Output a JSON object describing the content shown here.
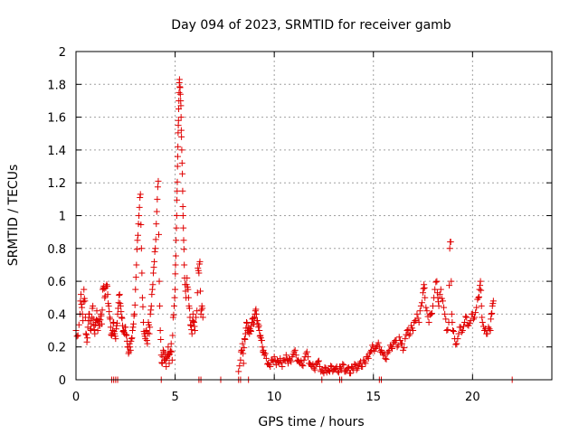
{
  "chart_data": {
    "type": "scatter",
    "title": "Day 094 of 2023, SRMTID for receiver gamb",
    "xlabel": "GPS time / hours",
    "ylabel": "SRMTID / TECUs",
    "xlim": [
      0,
      24
    ],
    "ylim": [
      0,
      2
    ],
    "xticks": [
      0,
      5,
      10,
      15,
      20
    ],
    "xtick_labels": [
      "0",
      "5",
      "10",
      "15",
      "20"
    ],
    "yticks": [
      0,
      0.2,
      0.4,
      0.6,
      0.8,
      1,
      1.2,
      1.4,
      1.6,
      1.8,
      2
    ],
    "ytick_labels": [
      "0",
      "0.2",
      "0.4",
      "0.6",
      "0.8",
      "1",
      "1.2",
      "1.4",
      "1.6",
      "1.8",
      "2"
    ],
    "grid": true,
    "marker": "+",
    "marker_color": "#e00000",
    "series": [
      {
        "name": "SRMTID",
        "points": [
          [
            0.0,
            0.3
          ],
          [
            0.1,
            0.27
          ],
          [
            0.2,
            0.4
          ],
          [
            0.25,
            0.52
          ],
          [
            0.3,
            0.44
          ],
          [
            0.35,
            0.36
          ],
          [
            0.4,
            0.55
          ],
          [
            0.45,
            0.48
          ],
          [
            0.5,
            0.28
          ],
          [
            0.55,
            0.23
          ],
          [
            0.6,
            0.32
          ],
          [
            0.65,
            0.4
          ],
          [
            0.7,
            0.36
          ],
          [
            0.75,
            0.3
          ],
          [
            0.8,
            0.38
          ],
          [
            0.85,
            0.45
          ],
          [
            0.9,
            0.33
          ],
          [
            0.95,
            0.28
          ],
          [
            1.0,
            0.35
          ],
          [
            1.05,
            0.42
          ],
          [
            1.1,
            0.3
          ],
          [
            1.15,
            0.37
          ],
          [
            1.2,
            0.33
          ],
          [
            1.25,
            0.4
          ],
          [
            1.3,
            0.34
          ],
          [
            1.35,
            0.55
          ],
          [
            1.4,
            0.57
          ],
          [
            1.45,
            0.5
          ],
          [
            1.5,
            0.56
          ],
          [
            1.55,
            0.58
          ],
          [
            1.6,
            0.52
          ],
          [
            1.65,
            0.45
          ],
          [
            1.7,
            0.38
          ],
          [
            1.75,
            0.32
          ],
          [
            1.8,
            0.27
          ],
          [
            1.85,
            0.3
          ],
          [
            1.9,
            0.35
          ],
          [
            1.95,
            0.28
          ],
          [
            2.0,
            0.25
          ],
          [
            2.05,
            0.33
          ],
          [
            2.1,
            0.4
          ],
          [
            2.15,
            0.47
          ],
          [
            2.2,
            0.52
          ],
          [
            2.25,
            0.45
          ],
          [
            2.3,
            0.38
          ],
          [
            2.35,
            0.33
          ],
          [
            2.4,
            0.3
          ],
          [
            2.45,
            0.28
          ],
          [
            2.5,
            0.32
          ],
          [
            2.55,
            0.27
          ],
          [
            2.6,
            0.2
          ],
          [
            2.65,
            0.16
          ],
          [
            2.7,
            0.22
          ],
          [
            2.75,
            0.18
          ],
          [
            2.8,
            0.25
          ],
          [
            2.85,
            0.3
          ],
          [
            2.9,
            0.34
          ],
          [
            2.95,
            0.4
          ],
          [
            3.0,
            0.55
          ],
          [
            3.05,
            0.7
          ],
          [
            3.1,
            0.85
          ],
          [
            3.15,
            0.95
          ],
          [
            3.2,
            1.05
          ],
          [
            3.25,
            1.13
          ],
          [
            3.3,
            0.8
          ],
          [
            3.35,
            0.5
          ],
          [
            3.4,
            0.35
          ],
          [
            3.45,
            0.28
          ],
          [
            3.5,
            0.25
          ],
          [
            3.55,
            0.3
          ],
          [
            3.6,
            0.22
          ],
          [
            3.65,
            0.35
          ],
          [
            3.7,
            0.28
          ],
          [
            3.75,
            0.4
          ],
          [
            3.8,
            0.45
          ],
          [
            3.85,
            0.55
          ],
          [
            3.9,
            0.65
          ],
          [
            3.95,
            0.72
          ],
          [
            4.0,
            0.8
          ],
          [
            4.05,
            0.95
          ],
          [
            4.1,
            1.1
          ],
          [
            4.15,
            1.21
          ],
          [
            4.2,
            0.6
          ],
          [
            4.25,
            0.3
          ],
          [
            4.3,
            0.15
          ],
          [
            4.35,
            0.1
          ],
          [
            4.4,
            0.18
          ],
          [
            4.45,
            0.12
          ],
          [
            4.5,
            0.16
          ],
          [
            4.55,
            0.08
          ],
          [
            4.6,
            0.14
          ],
          [
            4.65,
            0.2
          ],
          [
            4.7,
            0.1
          ],
          [
            4.75,
            0.17
          ],
          [
            4.8,
            0.22
          ],
          [
            4.85,
            0.12
          ],
          [
            4.9,
            0.38
          ],
          [
            4.95,
            0.45
          ],
          [
            5.0,
            0.55
          ],
          [
            5.02,
            0.7
          ],
          [
            5.05,
            0.85
          ],
          [
            5.08,
            1.0
          ],
          [
            5.1,
            1.15
          ],
          [
            5.12,
            1.3
          ],
          [
            5.14,
            1.42
          ],
          [
            5.16,
            1.55
          ],
          [
            5.18,
            1.65
          ],
          [
            5.2,
            1.75
          ],
          [
            5.22,
            1.83
          ],
          [
            5.25,
            1.78
          ],
          [
            5.28,
            1.7
          ],
          [
            5.3,
            1.6
          ],
          [
            5.32,
            1.48
          ],
          [
            5.35,
            1.32
          ],
          [
            5.38,
            1.15
          ],
          [
            5.4,
            1.0
          ],
          [
            5.43,
            0.85
          ],
          [
            5.46,
            0.7
          ],
          [
            5.5,
            0.58
          ],
          [
            5.55,
            0.5
          ],
          [
            5.6,
            0.62
          ],
          [
            5.65,
            0.55
          ],
          [
            5.7,
            0.45
          ],
          [
            5.75,
            0.38
          ],
          [
            5.8,
            0.33
          ],
          [
            5.85,
            0.28
          ],
          [
            5.9,
            0.4
          ],
          [
            5.95,
            0.35
          ],
          [
            6.0,
            0.3
          ],
          [
            6.1,
            0.42
          ],
          [
            6.15,
            0.68
          ],
          [
            6.2,
            0.65
          ],
          [
            6.25,
            0.72
          ],
          [
            6.3,
            0.4
          ],
          [
            6.35,
            0.45
          ],
          [
            6.4,
            0.38
          ],
          [
            8.2,
            0.05
          ],
          [
            8.3,
            0.12
          ],
          [
            8.35,
            0.18
          ],
          [
            8.4,
            0.22
          ],
          [
            8.45,
            0.1
          ],
          [
            8.5,
            0.25
          ],
          [
            8.55,
            0.28
          ],
          [
            8.6,
            0.35
          ],
          [
            8.65,
            0.3
          ],
          [
            8.7,
            0.32
          ],
          [
            8.75,
            0.28
          ],
          [
            8.8,
            0.3
          ],
          [
            8.85,
            0.33
          ],
          [
            8.9,
            0.37
          ],
          [
            8.95,
            0.34
          ],
          [
            9.0,
            0.38
          ],
          [
            9.05,
            0.42
          ],
          [
            9.1,
            0.4
          ],
          [
            9.15,
            0.36
          ],
          [
            9.2,
            0.32
          ],
          [
            9.25,
            0.3
          ],
          [
            9.3,
            0.27
          ],
          [
            9.35,
            0.24
          ],
          [
            9.4,
            0.2
          ],
          [
            9.45,
            0.18
          ],
          [
            9.5,
            0.15
          ],
          [
            9.6,
            0.13
          ],
          [
            9.7,
            0.1
          ],
          [
            9.8,
            0.08
          ],
          [
            9.9,
            0.12
          ],
          [
            10.0,
            0.14
          ],
          [
            10.1,
            0.09
          ],
          [
            10.2,
            0.11
          ],
          [
            10.3,
            0.13
          ],
          [
            10.4,
            0.08
          ],
          [
            10.5,
            0.12
          ],
          [
            10.6,
            0.15
          ],
          [
            10.7,
            0.1
          ],
          [
            10.8,
            0.12
          ],
          [
            10.9,
            0.14
          ],
          [
            11.0,
            0.17
          ],
          [
            11.1,
            0.15
          ],
          [
            11.2,
            0.12
          ],
          [
            11.3,
            0.1
          ],
          [
            11.4,
            0.09
          ],
          [
            11.5,
            0.12
          ],
          [
            11.6,
            0.16
          ],
          [
            11.7,
            0.14
          ],
          [
            11.8,
            0.1
          ],
          [
            11.9,
            0.08
          ],
          [
            12.0,
            0.07
          ],
          [
            12.1,
            0.09
          ],
          [
            12.2,
            0.11
          ],
          [
            12.3,
            0.08
          ],
          [
            12.4,
            0.06
          ],
          [
            12.5,
            0.04
          ],
          [
            12.6,
            0.07
          ],
          [
            12.7,
            0.06
          ],
          [
            12.8,
            0.05
          ],
          [
            12.9,
            0.08
          ],
          [
            13.0,
            0.06
          ],
          [
            13.1,
            0.07
          ],
          [
            13.2,
            0.05
          ],
          [
            13.3,
            0.08
          ],
          [
            13.4,
            0.06
          ],
          [
            13.5,
            0.09
          ],
          [
            13.6,
            0.05
          ],
          [
            13.7,
            0.07
          ],
          [
            13.8,
            0.04
          ],
          [
            13.9,
            0.08
          ],
          [
            14.0,
            0.06
          ],
          [
            14.1,
            0.09
          ],
          [
            14.2,
            0.07
          ],
          [
            14.3,
            0.1
          ],
          [
            14.4,
            0.08
          ],
          [
            14.5,
            0.12
          ],
          [
            14.6,
            0.1
          ],
          [
            14.7,
            0.14
          ],
          [
            14.8,
            0.16
          ],
          [
            14.9,
            0.18
          ],
          [
            15.0,
            0.2
          ],
          [
            15.1,
            0.19
          ],
          [
            15.2,
            0.21
          ],
          [
            15.3,
            0.2
          ],
          [
            15.4,
            0.18
          ],
          [
            15.5,
            0.15
          ],
          [
            15.6,
            0.13
          ],
          [
            15.7,
            0.16
          ],
          [
            15.8,
            0.18
          ],
          [
            15.9,
            0.2
          ],
          [
            16.0,
            0.22
          ],
          [
            16.1,
            0.24
          ],
          [
            16.2,
            0.2
          ],
          [
            16.3,
            0.26
          ],
          [
            16.4,
            0.22
          ],
          [
            16.5,
            0.18
          ],
          [
            16.6,
            0.25
          ],
          [
            16.7,
            0.3
          ],
          [
            16.8,
            0.27
          ],
          [
            16.9,
            0.33
          ],
          [
            17.0,
            0.3
          ],
          [
            17.1,
            0.36
          ],
          [
            17.2,
            0.4
          ],
          [
            17.3,
            0.35
          ],
          [
            17.4,
            0.45
          ],
          [
            17.5,
            0.53
          ],
          [
            17.55,
            0.58
          ],
          [
            17.6,
            0.5
          ],
          [
            17.7,
            0.42
          ],
          [
            17.8,
            0.35
          ],
          [
            17.9,
            0.4
          ],
          [
            18.0,
            0.45
          ],
          [
            18.1,
            0.55
          ],
          [
            18.2,
            0.6
          ],
          [
            18.25,
            0.5
          ],
          [
            18.3,
            0.45
          ],
          [
            18.4,
            0.55
          ],
          [
            18.5,
            0.48
          ],
          [
            18.6,
            0.4
          ],
          [
            18.7,
            0.3
          ],
          [
            18.8,
            0.35
          ],
          [
            18.85,
            0.8
          ],
          [
            18.9,
            0.84
          ],
          [
            18.95,
            0.4
          ],
          [
            19.0,
            0.3
          ],
          [
            19.1,
            0.25
          ],
          [
            19.2,
            0.22
          ],
          [
            19.3,
            0.28
          ],
          [
            19.4,
            0.32
          ],
          [
            19.5,
            0.3
          ],
          [
            19.6,
            0.35
          ],
          [
            19.7,
            0.38
          ],
          [
            19.8,
            0.33
          ],
          [
            19.9,
            0.36
          ],
          [
            20.0,
            0.4
          ],
          [
            20.1,
            0.38
          ],
          [
            20.2,
            0.44
          ],
          [
            20.3,
            0.5
          ],
          [
            20.35,
            0.55
          ],
          [
            20.4,
            0.6
          ],
          [
            20.45,
            0.45
          ],
          [
            20.5,
            0.35
          ],
          [
            20.6,
            0.3
          ],
          [
            20.7,
            0.28
          ],
          [
            20.8,
            0.32
          ],
          [
            20.9,
            0.3
          ],
          [
            20.95,
            0.4
          ],
          [
            21.0,
            0.45
          ],
          [
            21.05,
            0.48
          ]
        ]
      }
    ],
    "baseline_points_x": [
      1.8,
      1.9,
      2.0,
      2.1,
      4.3,
      6.2,
      6.3,
      7.3,
      8.2,
      8.3,
      8.7,
      12.4,
      13.3,
      13.4,
      15.3,
      15.4,
      22.0
    ]
  }
}
